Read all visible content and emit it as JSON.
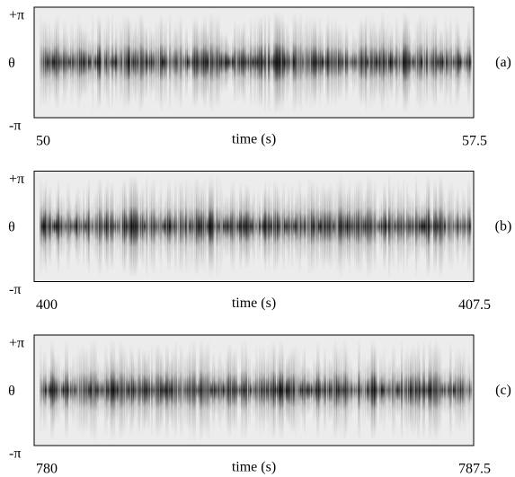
{
  "chart_data": [
    {
      "type": "heatmap",
      "xlabel": "time (s)",
      "ylabel": "θ",
      "panel_label": "(a)",
      "xlim": [
        50,
        57.5
      ],
      "xticks": [
        50,
        57.5
      ],
      "ylim": [
        -3.14159,
        3.14159
      ],
      "yticks": [
        {
          "value": 3.14159,
          "label": "+π"
        },
        {
          "value": -3.14159,
          "label": "-π"
        }
      ]
    },
    {
      "type": "heatmap",
      "xlabel": "time (s)",
      "ylabel": "θ",
      "panel_label": "(b)",
      "xlim": [
        400,
        407.5
      ],
      "xticks": [
        400,
        407.5
      ],
      "ylim": [
        -3.14159,
        3.14159
      ],
      "yticks": [
        {
          "value": 3.14159,
          "label": "+π"
        },
        {
          "value": -3.14159,
          "label": "-π"
        }
      ]
    },
    {
      "type": "heatmap",
      "xlabel": "time (s)",
      "ylabel": "θ",
      "panel_label": "(c)",
      "xlim": [
        780,
        787.5
      ],
      "xticks": [
        780,
        787.5
      ],
      "ylim": [
        -3.14159,
        3.14159
      ],
      "yticks": [
        {
          "value": 3.14159,
          "label": "+π"
        },
        {
          "value": -3.14159,
          "label": "-π"
        }
      ]
    }
  ]
}
